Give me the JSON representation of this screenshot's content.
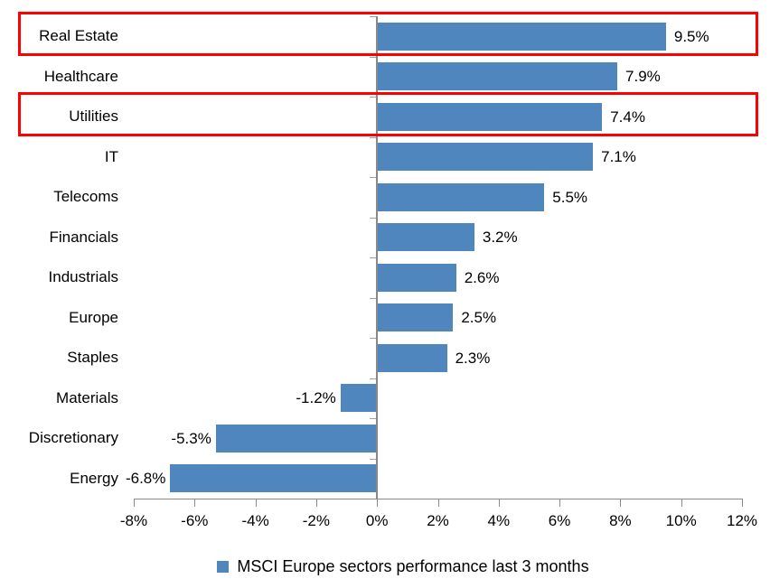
{
  "chart_data": {
    "type": "bar",
    "orientation": "horizontal",
    "title": "",
    "categories": [
      "Real Estate",
      "Healthcare",
      "Utilities",
      "IT",
      "Telecoms",
      "Financials",
      "Industrials",
      "Europe",
      "Staples",
      "Materials",
      "Discretionary",
      "Energy"
    ],
    "values": [
      9.5,
      7.9,
      7.4,
      7.1,
      5.5,
      3.2,
      2.6,
      2.5,
      2.3,
      -1.2,
      -5.3,
      -6.8
    ],
    "value_labels": [
      "9.5%",
      "7.9%",
      "7.4%",
      "7.1%",
      "5.5%",
      "3.2%",
      "2.6%",
      "2.5%",
      "2.3%",
      "-1.2%",
      "-5.3%",
      "-6.8%"
    ],
    "x_tick_values": [
      -8,
      -6,
      -4,
      -2,
      0,
      2,
      4,
      6,
      8,
      10,
      12
    ],
    "x_tick_labels": [
      "-8%",
      "-6%",
      "-4%",
      "-2%",
      "0%",
      "2%",
      "4%",
      "6%",
      "8%",
      "10%",
      "12%"
    ],
    "xlim": [
      -8,
      12
    ],
    "grid": false,
    "legend": "MSCI Europe sectors performance last 3 months",
    "legend_position": "bottom",
    "bar_color": "#4E86BD",
    "axis_color": "#898989",
    "tick_color": "#A0A0A0",
    "highlight_color": "#FF0000",
    "highlighted_categories": [
      "Real Estate",
      "Utilities"
    ]
  }
}
